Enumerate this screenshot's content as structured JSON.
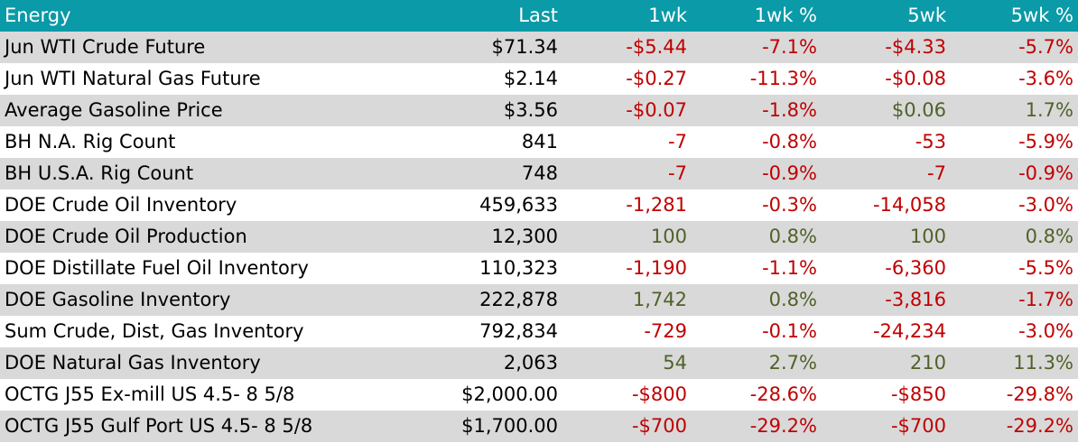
{
  "colors": {
    "header_bg": "#0a9aa8",
    "header_text": "#ffffff",
    "row_alt_bg": "#d9d9d9",
    "negative": "#c00000",
    "positive": "#4f6228"
  },
  "header": {
    "name": "Energy",
    "last": "Last",
    "wk1": "1wk",
    "wk1_pct": "1wk %",
    "wk5": "5wk",
    "wk5_pct": "5wk %"
  },
  "rows": [
    {
      "name": "Jun WTI Crude Future",
      "last": "$71.34",
      "wk1": "-$5.44",
      "wk1_pct": "-7.1%",
      "wk5": "-$4.33",
      "wk5_pct": "-5.7%"
    },
    {
      "name": "Jun WTI Natural Gas Future",
      "last": "$2.14",
      "wk1": "-$0.27",
      "wk1_pct": "-11.3%",
      "wk5": "-$0.08",
      "wk5_pct": "-3.6%"
    },
    {
      "name": "Average Gasoline Price",
      "last": "$3.56",
      "wk1": "-$0.07",
      "wk1_pct": "-1.8%",
      "wk5": "$0.06",
      "wk5_pct": "1.7%"
    },
    {
      "name": "BH N.A. Rig Count",
      "last": "841",
      "wk1": "-7",
      "wk1_pct": "-0.8%",
      "wk5": "-53",
      "wk5_pct": "-5.9%"
    },
    {
      "name": "BH U.S.A. Rig Count",
      "last": "748",
      "wk1": "-7",
      "wk1_pct": "-0.9%",
      "wk5": "-7",
      "wk5_pct": "-0.9%"
    },
    {
      "name": "DOE Crude Oil Inventory",
      "last": "459,633",
      "wk1": "-1,281",
      "wk1_pct": "-0.3%",
      "wk5": "-14,058",
      "wk5_pct": "-3.0%"
    },
    {
      "name": "DOE Crude Oil Production",
      "last": "12,300",
      "wk1": "100",
      "wk1_pct": "0.8%",
      "wk5": "100",
      "wk5_pct": "0.8%"
    },
    {
      "name": "DOE Distillate Fuel Oil Inventory",
      "last": "110,323",
      "wk1": "-1,190",
      "wk1_pct": "-1.1%",
      "wk5": "-6,360",
      "wk5_pct": "-5.5%"
    },
    {
      "name": "DOE Gasoline Inventory",
      "last": "222,878",
      "wk1": "1,742",
      "wk1_pct": "0.8%",
      "wk5": "-3,816",
      "wk5_pct": "-1.7%"
    },
    {
      "name": "Sum Crude, Dist, Gas Inventory",
      "last": "792,834",
      "wk1": "-729",
      "wk1_pct": "-0.1%",
      "wk5": "-24,234",
      "wk5_pct": "-3.0%"
    },
    {
      "name": "DOE Natural Gas Inventory",
      "last": "2,063",
      "wk1": "54",
      "wk1_pct": "2.7%",
      "wk5": "210",
      "wk5_pct": "11.3%"
    },
    {
      "name": "OCTG J55 Ex-mill US 4.5- 8 5/8",
      "last": "$2,000.00",
      "wk1": "-$800",
      "wk1_pct": "-28.6%",
      "wk5": "-$850",
      "wk5_pct": "-29.8%"
    },
    {
      "name": "OCTG J55 Gulf Port US 4.5- 8 5/8",
      "last": "$1,700.00",
      "wk1": "-$700",
      "wk1_pct": "-29.2%",
      "wk5": "-$700",
      "wk5_pct": "-29.2%"
    }
  ]
}
